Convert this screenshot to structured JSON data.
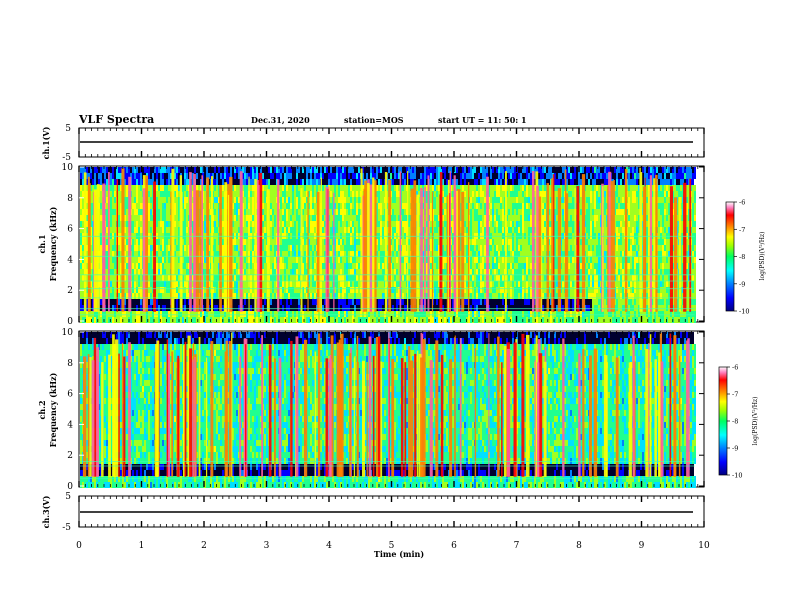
{
  "header": {
    "title": "VLF Spectra",
    "date": "Dec.31, 2020",
    "station": "station=MOS",
    "start": "start  UT =   11: 50: 1"
  },
  "colors": {
    "background": "#ffffff",
    "spectrogram_bg": "#00002e",
    "trace": "#000000",
    "colormap": [
      "#00007f",
      "#0000ff",
      "#0080ff",
      "#00e0ff",
      "#20ff90",
      "#a0ff20",
      "#ffff00",
      "#ff8000",
      "#ff0000",
      "#ff60a0",
      "#ffffff"
    ]
  },
  "panels": {
    "ch1_wave": {
      "ylabel": "ch.1(V)",
      "ticks": [
        "5",
        "-5"
      ]
    },
    "ch1_spec": {
      "ylabel_1": "ch.1",
      "ylabel_2": "Frequency  (kHz)",
      "ticks": [
        "10",
        "8",
        "6",
        "4",
        "2",
        "0"
      ]
    },
    "ch2_spec": {
      "ylabel_1": "ch.2",
      "ylabel_2": "Frequency  (kHz)",
      "ticks": [
        "10",
        "8",
        "6",
        "4",
        "2",
        "0"
      ]
    },
    "ch3_wave": {
      "ylabel": "ch.3(V)",
      "ticks": [
        "5",
        "-5"
      ]
    }
  },
  "colorbar": {
    "ticks": [
      "-6",
      "-7",
      "-8",
      "-9",
      "-10"
    ],
    "label": "log(PSD)(V²/Hz)"
  },
  "x_axis": {
    "label": "Time  (min)",
    "ticks": [
      "0",
      "1",
      "2",
      "3",
      "4",
      "5",
      "6",
      "7",
      "8",
      "9",
      "10"
    ]
  },
  "chart_data": {
    "type": "heatmap",
    "title": "VLF Spectra",
    "xlabel": "Time  (min)",
    "x_range": [
      0,
      10
    ],
    "data_end_min": 9.85,
    "ylabel": "Frequency  (kHz)",
    "y_range": [
      0,
      10
    ],
    "colorscale_range": [
      -10,
      -6
    ],
    "colorbar_label": "log(PSD)(V²/Hz)",
    "series": [
      {
        "name": "ch.1",
        "description": "broadband sferic bursts 0–9 kHz, horizontal interference lines near 0.4, 0.8, 1.5, 2.1, 2.6, 3.0, 4.2, 5.5 kHz, diffuse low-frequency hiss after ~8.2 min"
      },
      {
        "name": "ch.2",
        "description": "broadband sferic bursts 0–10 kHz, horizontal lines near 0.5, 1.3, 1.6 kHz"
      }
    ],
    "waveforms": [
      {
        "name": "ch.1(V)",
        "y_range": [
          -5,
          5
        ],
        "level_v": 0
      },
      {
        "name": "ch.3(V)",
        "y_range": [
          -5,
          5
        ],
        "level_v": 0
      }
    ],
    "grid": false
  }
}
